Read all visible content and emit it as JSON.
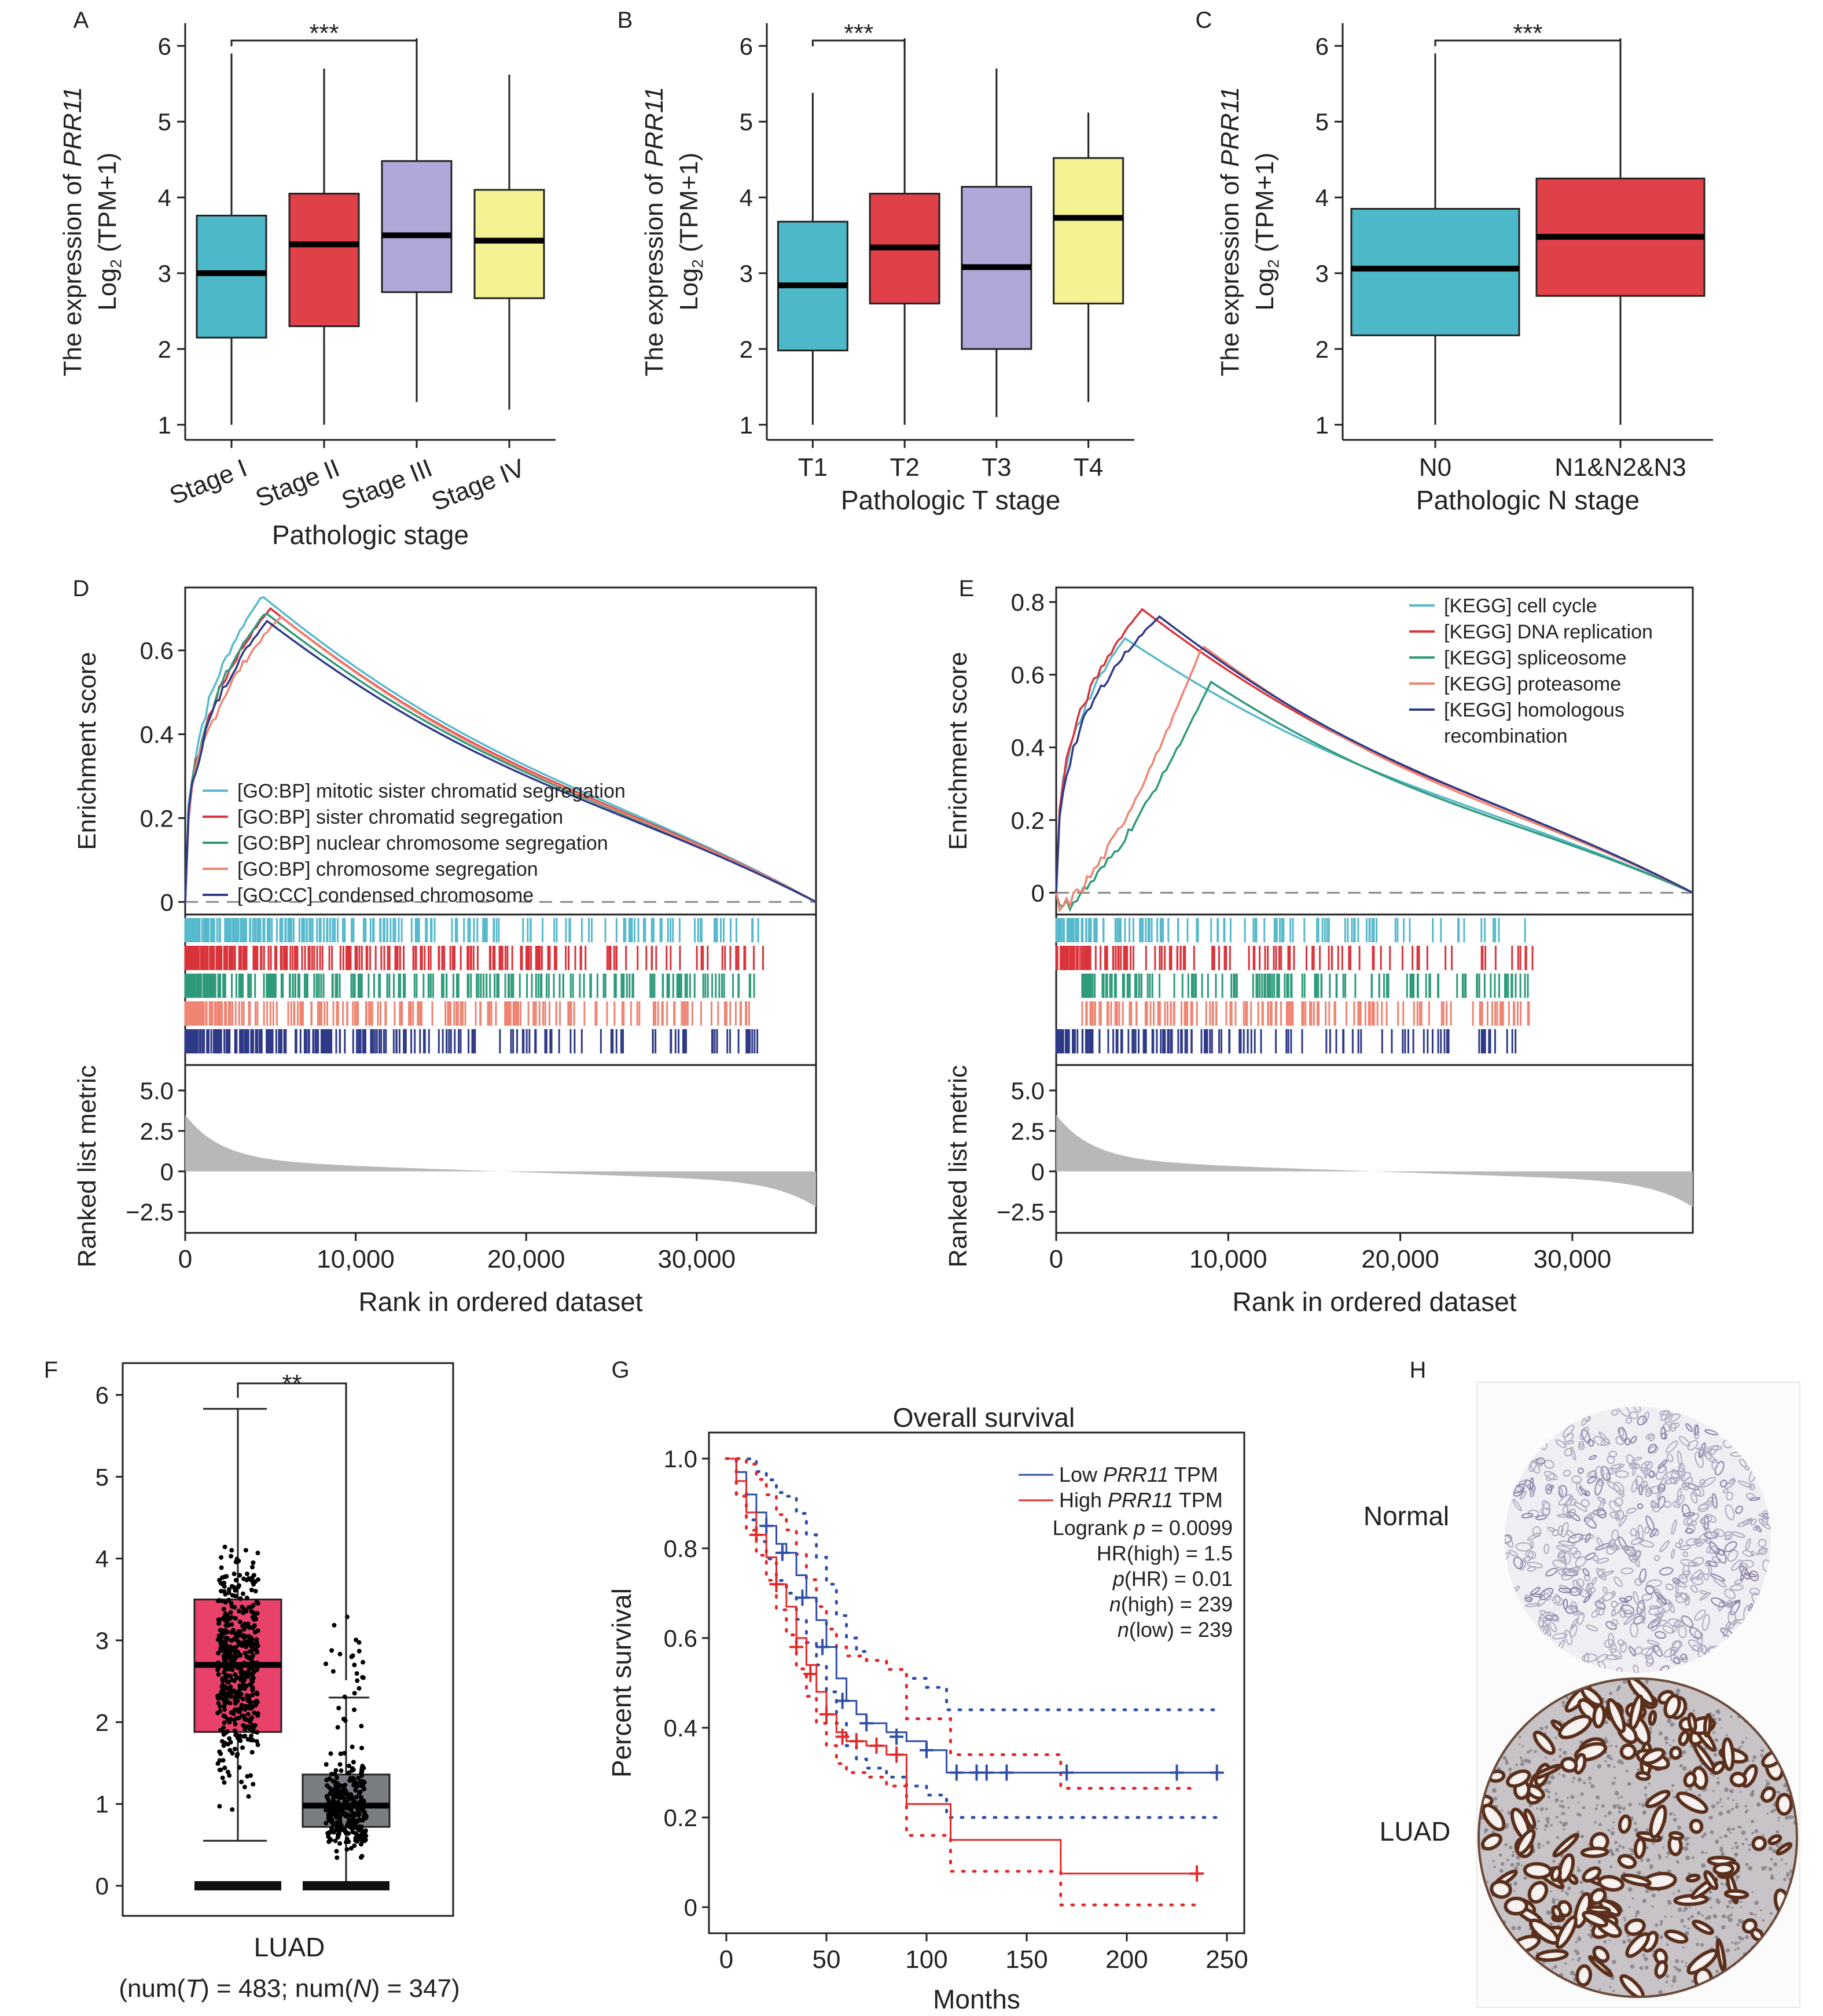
{
  "colors": {
    "teal": "#4db8c8",
    "red": "#e04048",
    "lavender": "#b0a8d8",
    "yellow": "#f2f292",
    "tealA": "#56b9cc",
    "redA": "#d9343a",
    "green": "#2f9a7a",
    "salmon": "#ef8472",
    "navy": "#2e3a88",
    "gray": "#b8b8b8",
    "luad_pink": "#e8416a",
    "normal_gray": "#7a7d82",
    "km_blue": "#2e4ea8",
    "km_red": "#e32a2a"
  },
  "panel_letters": [
    "A",
    "B",
    "C",
    "D",
    "E",
    "F",
    "G",
    "H"
  ],
  "boxplots": [
    {
      "letter": "A",
      "ylabel_prefix": "The expression of ",
      "gene": "PRR11",
      "ylabel2": "(TPM+1)",
      "xlabel": "Pathologic stage",
      "sig": "***",
      "categories": [
        "Stage I",
        "Stage II",
        "Stage III",
        "Stage IV"
      ],
      "colors": [
        "#4db8c8",
        "#e04048",
        "#b0a8d8",
        "#f2f292"
      ],
      "boxes": [
        {
          "min": 1.0,
          "q1": 2.15,
          "med": 3.0,
          "q3": 3.76,
          "max": 5.9
        },
        {
          "min": 1.0,
          "q1": 2.3,
          "med": 3.38,
          "q3": 4.05,
          "max": 5.7
        },
        {
          "min": 1.3,
          "q1": 2.75,
          "med": 3.5,
          "q3": 4.48,
          "max": 6.1
        },
        {
          "min": 1.2,
          "q1": 2.67,
          "med": 3.43,
          "q3": 4.1,
          "max": 5.62
        }
      ],
      "sig_pair": [
        0,
        2
      ],
      "rotated": true
    },
    {
      "letter": "B",
      "ylabel_prefix": "The expression of ",
      "gene": "PRR11",
      "ylabel2": "(TPM+1)",
      "xlabel": "Pathologic T stage",
      "sig": "***",
      "categories": [
        "T1",
        "T2",
        "T3",
        "T4"
      ],
      "colors": [
        "#4db8c8",
        "#e04048",
        "#b0a8d8",
        "#f2f292"
      ],
      "boxes": [
        {
          "min": 1.0,
          "q1": 1.98,
          "med": 2.84,
          "q3": 3.68,
          "max": 5.38
        },
        {
          "min": 1.0,
          "q1": 2.6,
          "med": 3.34,
          "q3": 4.05,
          "max": 6.1
        },
        {
          "min": 1.1,
          "q1": 2.0,
          "med": 3.08,
          "q3": 4.14,
          "max": 5.7
        },
        {
          "min": 1.3,
          "q1": 2.6,
          "med": 3.73,
          "q3": 4.52,
          "max": 5.12
        }
      ],
      "sig_pair": [
        0,
        1
      ],
      "rotated": false
    },
    {
      "letter": "C",
      "ylabel_prefix": "The expression of ",
      "gene": "PRR11",
      "ylabel2": "(TPM+1)",
      "xlabel": "Pathologic N stage",
      "sig": "***",
      "categories": [
        "N0",
        "N1&N2&N3"
      ],
      "colors": [
        "#4db8c8",
        "#e04048"
      ],
      "boxes": [
        {
          "min": 1.0,
          "q1": 2.18,
          "med": 3.06,
          "q3": 3.85,
          "max": 5.9
        },
        {
          "min": 1.0,
          "q1": 2.7,
          "med": 3.48,
          "q3": 4.25,
          "max": 6.1
        }
      ],
      "sig_pair": [
        0,
        1
      ],
      "rotated": false
    }
  ],
  "box_ylabel_log": "Log",
  "box_ylabel_sub": "2",
  "box_yticks": [
    1,
    2,
    3,
    4,
    5,
    6
  ],
  "gsea": [
    {
      "letter": "D",
      "ylabel_es": "Enrichment score",
      "ylabel_rank": "Ranked list metric",
      "xlabel": "Rank in ordered dataset",
      "es_ticks": [
        0,
        0.2,
        0.4,
        0.6
      ],
      "es_range": [
        -0.03,
        0.75
      ],
      "rank_ticks": [
        "5.0",
        "2.5",
        "0",
        "−2.5"
      ],
      "x_ticks": [
        "0",
        "10,000",
        "20,000",
        "30,000"
      ],
      "x_max": 37000,
      "legend": [
        "[GO:BP] mitotic sister chromatid segregation",
        "[GO:BP] sister chromatid segregation",
        "[GO:BP] nuclear chromosome segregation",
        "[GO:BP] chromosome segregation",
        "[GO:CC] condensed chromosome"
      ],
      "series_colors": [
        "#56b9cc",
        "#d9343a",
        "#2f9a7a",
        "#ef8472",
        "#2e3a88"
      ],
      "peaks": [
        0.73,
        0.7,
        0.69,
        0.68,
        0.67
      ],
      "peak_x": [
        4500,
        5000,
        4700,
        5600,
        4800
      ]
    },
    {
      "letter": "E",
      "ylabel_es": "Enrichment score",
      "ylabel_rank": "Ranked list metric",
      "xlabel": "Rank in ordered dataset",
      "es_ticks": [
        0,
        0.2,
        0.4,
        0.6,
        0.8
      ],
      "es_range": [
        -0.06,
        0.84
      ],
      "rank_ticks": [
        "5.0",
        "2.5",
        "0",
        "−2.5"
      ],
      "x_ticks": [
        "0",
        "10,000",
        "20,000",
        "30,000"
      ],
      "x_max": 37000,
      "legend": [
        "[KEGG] cell cycle",
        "[KEGG] DNA replication",
        "[KEGG] spliceosome",
        "[KEGG] proteasome",
        "[KEGG] homologous recombination"
      ],
      "series_colors": [
        "#56b9cc",
        "#d9343a",
        "#2f9a7a",
        "#ef8472",
        "#2e3a88"
      ],
      "peaks": [
        0.7,
        0.78,
        0.58,
        0.68,
        0.76
      ],
      "peak_x": [
        4000,
        5000,
        9000,
        8500,
        6000
      ]
    }
  ],
  "gepia": {
    "letter": "F",
    "yticks": [
      0,
      1,
      2,
      3,
      4,
      5,
      6
    ],
    "sig": "**",
    "xlabel": "LUAD",
    "n_label": "(num(T) = 483; num(N) = 347)",
    "tumor": {
      "min": 0.55,
      "q1": 1.88,
      "med": 2.7,
      "q3": 3.5,
      "max": 5.83
    },
    "normal": {
      "min": 0.0,
      "q1": 0.72,
      "med": 0.98,
      "q3": 1.36,
      "max": 2.3
    }
  },
  "km": {
    "letter": "G",
    "title": "Overall survival",
    "xlabel": "Months",
    "ylabel": "Percent survival",
    "xticks": [
      0,
      50,
      100,
      150,
      200,
      250
    ],
    "yticks": [
      "0",
      "0.2",
      "0.4",
      "0.6",
      "0.8",
      "1.0"
    ],
    "legend": [
      {
        "prefix": "Low ",
        "gene": "PRR11",
        "suffix": " TPM"
      },
      {
        "prefix": "High ",
        "gene": "PRR11",
        "suffix": " TPM"
      }
    ],
    "stats": [
      {
        "pre": "Logrank ",
        "ital": "p",
        "post": " = 0.0099"
      },
      {
        "pre": "HR(high) = 1.5",
        "ital": "",
        "post": ""
      },
      {
        "pre": "",
        "ital": "p",
        "post": "(HR) = 0.01"
      },
      {
        "pre": "",
        "ital": "n",
        "post": "(high) = 239"
      },
      {
        "pre": "",
        "ital": "n",
        "post": "(low) = 239"
      }
    ],
    "low_curve": [
      [
        0,
        1.0
      ],
      [
        5,
        0.97
      ],
      [
        10,
        0.92
      ],
      [
        15,
        0.88
      ],
      [
        20,
        0.85
      ],
      [
        25,
        0.81
      ],
      [
        30,
        0.79
      ],
      [
        35,
        0.74
      ],
      [
        40,
        0.69
      ],
      [
        45,
        0.64
      ],
      [
        50,
        0.58
      ],
      [
        55,
        0.51
      ],
      [
        60,
        0.46
      ],
      [
        65,
        0.43
      ],
      [
        70,
        0.41
      ],
      [
        80,
        0.39
      ],
      [
        90,
        0.37
      ],
      [
        100,
        0.35
      ],
      [
        110,
        0.3
      ],
      [
        245,
        0.3
      ]
    ],
    "high_curve": [
      [
        0,
        1.0
      ],
      [
        5,
        0.95
      ],
      [
        10,
        0.88
      ],
      [
        15,
        0.83
      ],
      [
        20,
        0.78
      ],
      [
        25,
        0.72
      ],
      [
        30,
        0.67
      ],
      [
        35,
        0.6
      ],
      [
        40,
        0.54
      ],
      [
        45,
        0.48
      ],
      [
        50,
        0.43
      ],
      [
        55,
        0.39
      ],
      [
        60,
        0.37
      ],
      [
        70,
        0.36
      ],
      [
        80,
        0.34
      ],
      [
        90,
        0.23
      ],
      [
        110,
        0.23
      ],
      [
        112,
        0.15
      ],
      [
        165,
        0.15
      ],
      [
        167,
        0.075
      ],
      [
        235,
        0.075
      ]
    ]
  },
  "ihc": {
    "letter": "H",
    "labels": [
      "Normal",
      "LUAD"
    ]
  }
}
